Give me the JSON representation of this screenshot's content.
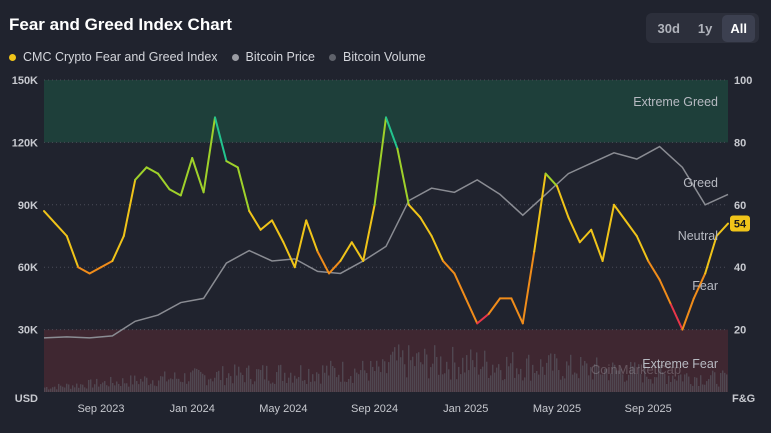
{
  "header": {
    "title": "Fear and Greed Index Chart"
  },
  "range_buttons": [
    {
      "label": "30d",
      "active": false
    },
    {
      "label": "1y",
      "active": false
    },
    {
      "label": "All",
      "active": true
    }
  ],
  "colors": {
    "fng": "#f0c419",
    "price": "#9a9ca3",
    "volume": "#5f626b",
    "greed_zone": "#1e4a3f",
    "fear_zone": "#4a2a33"
  },
  "chart_data": {
    "type": "line",
    "title": "Fear and Greed Index Chart",
    "legend": [
      "CMC Crypto Fear and Greed Index",
      "Bitcoin Price",
      "Bitcoin Volume"
    ],
    "left_axis": {
      "unit": "USD",
      "range": [
        0,
        150000
      ],
      "ticks": [
        "150K",
        "120K",
        "90K",
        "60K",
        "30K"
      ],
      "tick_values": [
        150000,
        120000,
        90000,
        60000,
        30000
      ]
    },
    "right_axis": {
      "unit": "F&G",
      "range": [
        0,
        100
      ],
      "ticks": [
        "100",
        "80",
        "60",
        "40",
        "20"
      ],
      "tick_values": [
        100,
        80,
        60,
        40,
        20
      ]
    },
    "x_range": [
      0,
      30
    ],
    "x_ticks": [
      {
        "label": "Sep 2023",
        "x": 2.5
      },
      {
        "label": "Jan 2024",
        "x": 6.5
      },
      {
        "label": "May 2024",
        "x": 10.5
      },
      {
        "label": "Sep 2024",
        "x": 14.5
      },
      {
        "label": "Jan 2025",
        "x": 18.5
      },
      {
        "label": "May 2025",
        "x": 22.5
      },
      {
        "label": "Sep 2025",
        "x": 26.5
      }
    ],
    "zones": [
      {
        "label": "Extreme Greed",
        "from": 80,
        "to": 100
      },
      {
        "label": "Greed",
        "value": 67
      },
      {
        "label": "Neutral",
        "value": 50
      },
      {
        "label": "Fear",
        "value": 34
      },
      {
        "label": "Extreme Fear",
        "from": 0,
        "to": 20
      }
    ],
    "current_value": "54",
    "watermark": "CoinMarketCap",
    "fng_series": [
      [
        0,
        58
      ],
      [
        0.5,
        54
      ],
      [
        1,
        50
      ],
      [
        1.5,
        40
      ],
      [
        2,
        38
      ],
      [
        2.5,
        40
      ],
      [
        3,
        42
      ],
      [
        3.5,
        50
      ],
      [
        4,
        68
      ],
      [
        4.5,
        72
      ],
      [
        5,
        70
      ],
      [
        5.5,
        65
      ],
      [
        6,
        63
      ],
      [
        6.5,
        75
      ],
      [
        7,
        64
      ],
      [
        7.5,
        88
      ],
      [
        8,
        74
      ],
      [
        8.5,
        72
      ],
      [
        9,
        58
      ],
      [
        9.5,
        52
      ],
      [
        10,
        55
      ],
      [
        10.5,
        48
      ],
      [
        11,
        40
      ],
      [
        11.5,
        55
      ],
      [
        12,
        45
      ],
      [
        12.5,
        38
      ],
      [
        13,
        42
      ],
      [
        13.5,
        48
      ],
      [
        14,
        42
      ],
      [
        14.5,
        60
      ],
      [
        15,
        88
      ],
      [
        15.5,
        78
      ],
      [
        16,
        60
      ],
      [
        16.5,
        56
      ],
      [
        17,
        50
      ],
      [
        17.5,
        42
      ],
      [
        18,
        38
      ],
      [
        18.5,
        30
      ],
      [
        19,
        22
      ],
      [
        19.5,
        25
      ],
      [
        20,
        30
      ],
      [
        20.5,
        30
      ],
      [
        21,
        22
      ],
      [
        21.5,
        45
      ],
      [
        22,
        70
      ],
      [
        22.5,
        66
      ],
      [
        23,
        56
      ],
      [
        23.5,
        48
      ],
      [
        24,
        52
      ],
      [
        24.5,
        42
      ],
      [
        25,
        60
      ],
      [
        25.5,
        55
      ],
      [
        26,
        50
      ],
      [
        26.5,
        42
      ],
      [
        27,
        36
      ],
      [
        27.5,
        28
      ],
      [
        28,
        20
      ],
      [
        28.5,
        30
      ],
      [
        29,
        38
      ],
      [
        29.5,
        50
      ],
      [
        30,
        54
      ]
    ],
    "price_series": [
      [
        0,
        26000
      ],
      [
        1,
        26500
      ],
      [
        2,
        26000
      ],
      [
        3,
        27000
      ],
      [
        4,
        34000
      ],
      [
        5,
        37000
      ],
      [
        6,
        43000
      ],
      [
        7,
        45000
      ],
      [
        8,
        62000
      ],
      [
        9,
        68000
      ],
      [
        10,
        63000
      ],
      [
        11,
        64000
      ],
      [
        12,
        58000
      ],
      [
        13,
        57000
      ],
      [
        14,
        63000
      ],
      [
        15,
        70000
      ],
      [
        16,
        92000
      ],
      [
        17,
        98000
      ],
      [
        18,
        96000
      ],
      [
        19,
        102000
      ],
      [
        20,
        95000
      ],
      [
        21,
        85000
      ],
      [
        22,
        95000
      ],
      [
        23,
        105000
      ],
      [
        24,
        110000
      ],
      [
        25,
        115000
      ],
      [
        26,
        112000
      ],
      [
        27,
        118000
      ],
      [
        28,
        108000
      ],
      [
        29,
        90000
      ],
      [
        30,
        95000
      ]
    ]
  }
}
